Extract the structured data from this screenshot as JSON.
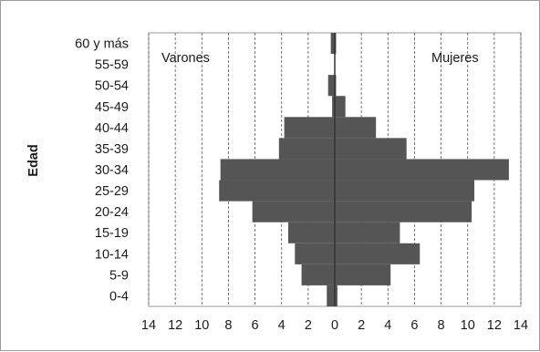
{
  "chart_data": {
    "type": "bar",
    "orientation": "horizontal",
    "subtype": "population-pyramid",
    "ylabel": "Edad",
    "categories": [
      "0-4",
      "5-9",
      "10-14",
      "15-19",
      "20-24",
      "25-29",
      "30-34",
      "35-39",
      "40-44",
      "45-49",
      "50-54",
      "55-59",
      "60 y más"
    ],
    "series": [
      {
        "name": "Varones",
        "values": [
          0.6,
          2.5,
          3.0,
          3.5,
          6.2,
          8.7,
          8.6,
          4.2,
          3.8,
          0.2,
          0.5,
          0.0,
          0.3
        ],
        "side": "left",
        "color": "#555555"
      },
      {
        "name": "Mujeres",
        "values": [
          0.2,
          4.2,
          6.4,
          4.9,
          10.3,
          10.5,
          13.1,
          5.4,
          3.1,
          0.8,
          0.1,
          0.0,
          0.1
        ],
        "side": "right",
        "color": "#555555"
      }
    ],
    "xlim": [
      -14,
      14
    ],
    "x_ticks": [
      -14,
      -12,
      -10,
      -8,
      -6,
      -4,
      -2,
      0,
      2,
      4,
      6,
      8,
      10,
      12,
      14
    ],
    "x_tick_labels": [
      "14",
      "12",
      "10",
      "8",
      "6",
      "4",
      "2",
      "0",
      "2",
      "4",
      "6",
      "8",
      "10",
      "12",
      "14"
    ],
    "grid": "vertical-dashed",
    "annotations": {
      "left": "Varones",
      "right": "Mujeres"
    }
  }
}
